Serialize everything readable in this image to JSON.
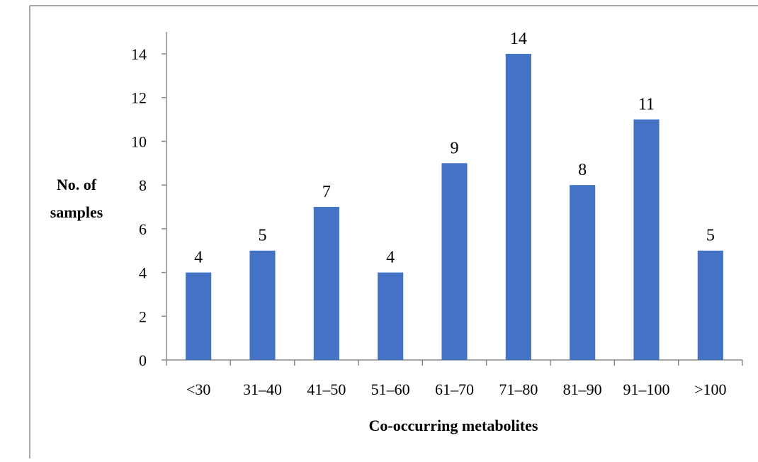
{
  "chart_data": {
    "type": "bar",
    "title": "",
    "xlabel": "Co-occurring metabolites",
    "ylabel_lines": [
      "No. of",
      "samples"
    ],
    "categories": [
      "<30",
      "31–40",
      "41–50",
      "51–60",
      "61–70",
      "71–80",
      "81–90",
      "91–100",
      ">100"
    ],
    "values": [
      4,
      5,
      7,
      4,
      9,
      14,
      8,
      11,
      5
    ],
    "ylim": [
      0,
      15
    ],
    "yticks": [
      0,
      2,
      4,
      6,
      8,
      10,
      12,
      14
    ],
    "grid": false,
    "legend": "none",
    "bar_color": "#4472c4",
    "data_labels": true
  }
}
